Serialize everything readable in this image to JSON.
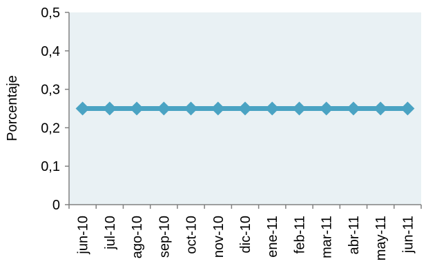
{
  "chart_data": {
    "type": "line",
    "title": "",
    "xlabel": "",
    "ylabel": "Porcentaje",
    "categories": [
      "jun-10",
      "jul-10",
      "ago-10",
      "sep-10",
      "oct-10",
      "nov-10",
      "dic-10",
      "ene-11",
      "feb-11",
      "mar-11",
      "abr-11",
      "may-11",
      "jun-11"
    ],
    "series": [
      {
        "values": [
          0.25,
          0.25,
          0.25,
          0.25,
          0.25,
          0.25,
          0.25,
          0.25,
          0.25,
          0.25,
          0.25,
          0.25,
          0.25
        ]
      }
    ],
    "ylim": [
      0,
      0.5
    ],
    "yticks": [
      0,
      0.1,
      0.2,
      0.3,
      0.4,
      0.5
    ],
    "ytick_labels": [
      "0",
      "0,1",
      "0,2",
      "0,3",
      "0,4",
      "0,5"
    ],
    "grid": false,
    "legend": "none",
    "colors": {
      "plot_background": "#e9f1f4",
      "series": "#4aa3c3",
      "axis": "#808080"
    }
  }
}
